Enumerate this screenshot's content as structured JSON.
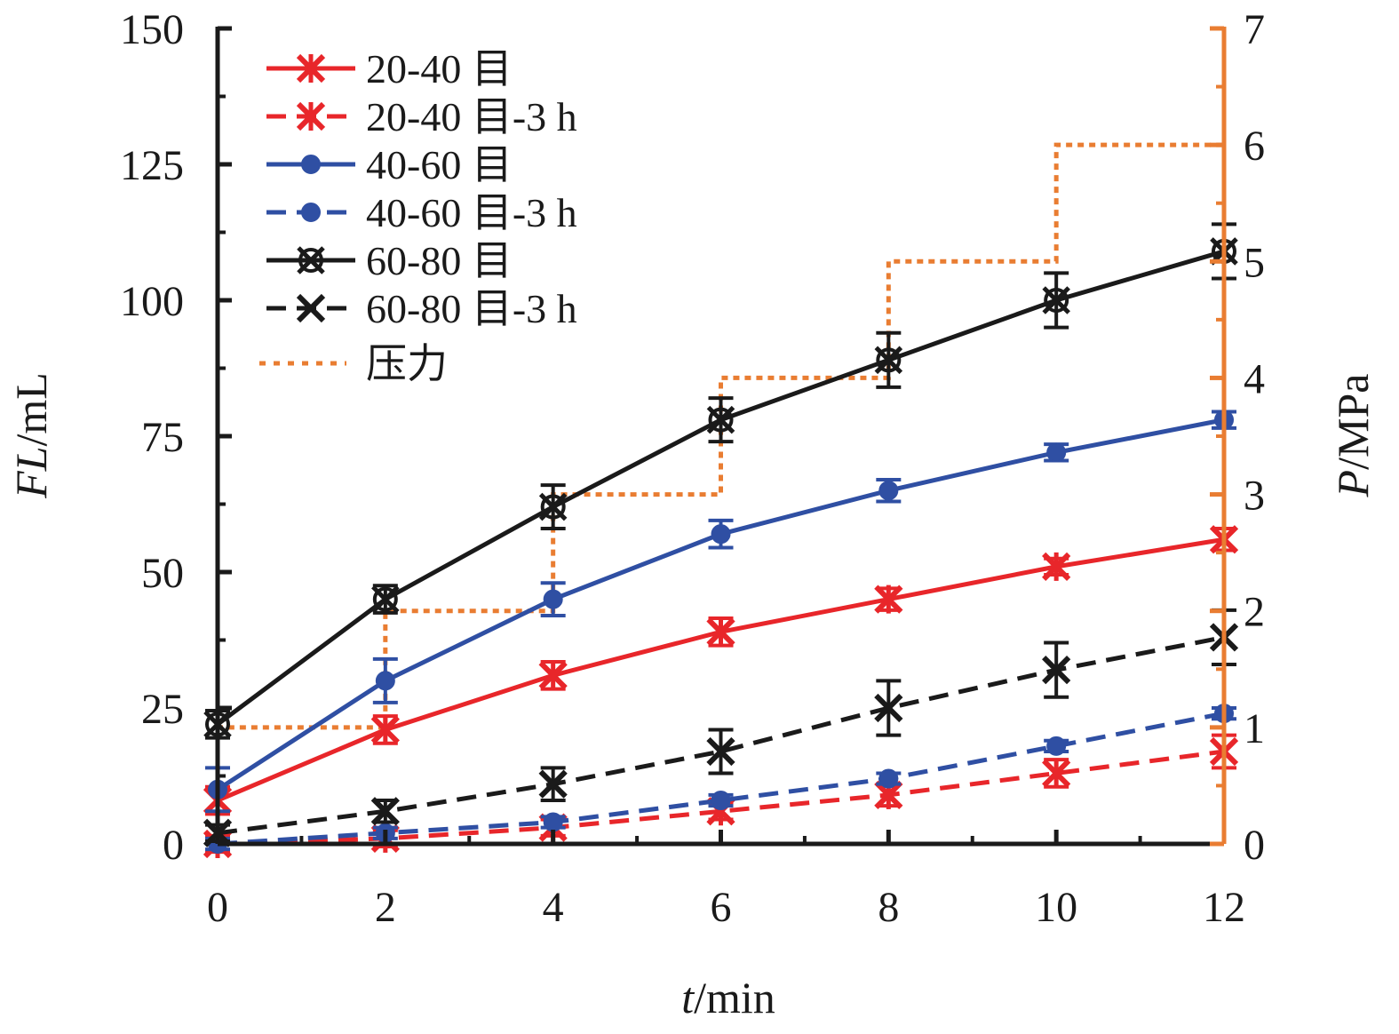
{
  "chart_data": {
    "type": "line",
    "x": [
      0,
      2,
      4,
      6,
      8,
      10,
      12
    ],
    "xlabel": {
      "italic": "t",
      "rest": "/min"
    },
    "ylabel": {
      "italic": "FL",
      "rest": "/mL"
    },
    "y2label": {
      "italic": "P",
      "rest": "/MPa"
    },
    "xlim": [
      0,
      12
    ],
    "ylim": [
      0,
      150
    ],
    "y2lim": [
      0,
      7
    ],
    "xticks": [
      "0",
      "2",
      "4",
      "6",
      "8",
      "10",
      "12"
    ],
    "yticks": [
      "0",
      "25",
      "50",
      "75",
      "100",
      "125",
      "150"
    ],
    "y2ticks": [
      "0",
      "1",
      "2",
      "3",
      "4",
      "5",
      "6",
      "7"
    ],
    "grid": false,
    "legend_position": "top-left",
    "series": [
      {
        "name": "20-40 目",
        "color": "#e8262a",
        "dash": "solid",
        "marker": "star",
        "values": [
          8,
          21,
          31,
          39,
          45,
          51,
          56
        ],
        "errors": [
          2.5,
          2.5,
          2.5,
          2.5,
          2,
          1.5,
          2
        ]
      },
      {
        "name": "20-40 目-3 h",
        "color": "#e8262a",
        "dash": "dashed",
        "marker": "star",
        "values": [
          0,
          1,
          3,
          6,
          9,
          13,
          17
        ],
        "errors": [
          1.5,
          1.5,
          1.5,
          1.5,
          2,
          2.5,
          3
        ]
      },
      {
        "name": "40-60 目",
        "color": "#2f4fa3",
        "dash": "solid",
        "marker": "circle",
        "values": [
          10,
          30,
          45,
          57,
          65,
          72,
          78
        ],
        "errors": [
          4,
          4,
          3,
          2.5,
          2,
          1.5,
          1.5
        ]
      },
      {
        "name": "40-60 目-3 h",
        "color": "#2f4fa3",
        "dash": "dashed",
        "marker": "circle",
        "values": [
          0,
          2,
          4,
          8,
          12,
          18,
          24
        ],
        "errors": [
          1,
          1,
          1,
          1,
          1,
          1,
          1
        ]
      },
      {
        "name": "60-80 目",
        "color": "#1a1a1a",
        "dash": "solid",
        "marker": "xcircle",
        "values": [
          22,
          45,
          62,
          78,
          89,
          100,
          109
        ],
        "errors": [
          2.5,
          2.5,
          4,
          4,
          5,
          5,
          5
        ]
      },
      {
        "name": "60-80 目-3 h",
        "color": "#1a1a1a",
        "dash": "dashed",
        "marker": "x",
        "values": [
          2,
          6,
          11,
          17,
          25,
          32,
          38
        ],
        "errors": [
          1.5,
          2,
          3,
          4,
          5,
          5,
          5
        ]
      }
    ],
    "pressure": {
      "name": "压力",
      "color": "#e97d32",
      "axis": "right",
      "dash": "dotted",
      "steps": [
        {
          "x": 0,
          "y": 1
        },
        {
          "x": 2,
          "y": 2
        },
        {
          "x": 4,
          "y": 3
        },
        {
          "x": 6,
          "y": 4
        },
        {
          "x": 8,
          "y": 5
        },
        {
          "x": 10,
          "y": 6
        },
        {
          "x": 12,
          "y": 6
        }
      ]
    }
  }
}
